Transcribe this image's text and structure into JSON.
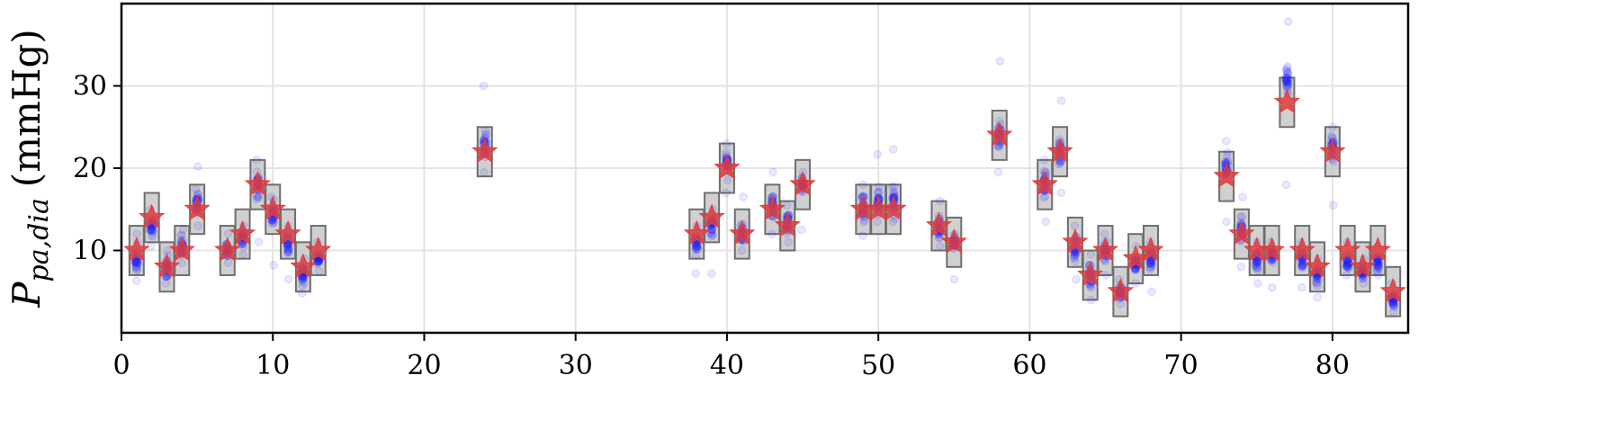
{
  "chart_data": {
    "type": "scatter",
    "title": "",
    "xlabel": "",
    "ylabel": {
      "symbol": "P",
      "subscript": "pa,dia",
      "unit": "(mmHg)"
    },
    "xlim": [
      0,
      85
    ],
    "ylim": [
      0,
      40
    ],
    "xticks": [
      0,
      10,
      20,
      30,
      40,
      50,
      60,
      70,
      80
    ],
    "yticks": [
      10,
      20,
      30
    ],
    "grid": true,
    "colors": {
      "star": "#e03c3c",
      "samples": "#1f1fff",
      "box_fill": "#c8c8c8",
      "box_edge": "#6e6e6e",
      "grid": "#e3e3e3"
    },
    "series": [
      {
        "marker": "star",
        "points": [
          {
            "x": 1,
            "y": 10
          },
          {
            "x": 2,
            "y": 14
          },
          {
            "x": 3,
            "y": 8
          },
          {
            "x": 4,
            "y": 10
          },
          {
            "x": 5,
            "y": 15
          },
          {
            "x": 7,
            "y": 10
          },
          {
            "x": 8,
            "y": 12
          },
          {
            "x": 9,
            "y": 18
          },
          {
            "x": 10,
            "y": 15
          },
          {
            "x": 11,
            "y": 12
          },
          {
            "x": 12,
            "y": 8
          },
          {
            "x": 13,
            "y": 10
          },
          {
            "x": 24,
            "y": 22
          },
          {
            "x": 38,
            "y": 12
          },
          {
            "x": 39,
            "y": 14
          },
          {
            "x": 40,
            "y": 20
          },
          {
            "x": 41,
            "y": 12
          },
          {
            "x": 43,
            "y": 15
          },
          {
            "x": 44,
            "y": 13
          },
          {
            "x": 45,
            "y": 18
          },
          {
            "x": 49,
            "y": 15
          },
          {
            "x": 50,
            "y": 15
          },
          {
            "x": 51,
            "y": 15
          },
          {
            "x": 54,
            "y": 13
          },
          {
            "x": 55,
            "y": 11
          },
          {
            "x": 58,
            "y": 24
          },
          {
            "x": 61,
            "y": 18
          },
          {
            "x": 62,
            "y": 22
          },
          {
            "x": 63,
            "y": 11
          },
          {
            "x": 64,
            "y": 7
          },
          {
            "x": 65,
            "y": 10
          },
          {
            "x": 66,
            "y": 5
          },
          {
            "x": 67,
            "y": 9
          },
          {
            "x": 68,
            "y": 10
          },
          {
            "x": 73,
            "y": 19
          },
          {
            "x": 74,
            "y": 12
          },
          {
            "x": 75,
            "y": 10
          },
          {
            "x": 76,
            "y": 10
          },
          {
            "x": 77,
            "y": 28
          },
          {
            "x": 78,
            "y": 10
          },
          {
            "x": 79,
            "y": 8
          },
          {
            "x": 80,
            "y": 22
          },
          {
            "x": 81,
            "y": 10
          },
          {
            "x": 82,
            "y": 8
          },
          {
            "x": 83,
            "y": 10
          },
          {
            "x": 84,
            "y": 5
          }
        ]
      },
      {
        "marker": "box",
        "half_height": 3,
        "points_from": "star"
      },
      {
        "marker": "circle",
        "samples": [
          {
            "x": 1,
            "median": 9,
            "min": 6.3,
            "max": 12
          },
          {
            "x": 2,
            "median": 13,
            "min": 10.5,
            "max": 15
          },
          {
            "x": 3,
            "median": 8,
            "min": 6,
            "max": 10
          },
          {
            "x": 4,
            "median": 10.5,
            "min": 8.5,
            "max": 12.5
          },
          {
            "x": 5,
            "median": 16,
            "min": 13,
            "max": 20.2
          },
          {
            "x": 7,
            "median": 10,
            "min": 8.5,
            "max": 12
          },
          {
            "x": 8,
            "median": 11.5,
            "min": 9.5,
            "max": 13
          },
          {
            "x": 9,
            "median": 18,
            "min": 11,
            "max": 21
          },
          {
            "x": 10,
            "median": 14.5,
            "min": 8.2,
            "max": 16.5
          },
          {
            "x": 11,
            "median": 11,
            "min": 6.5,
            "max": 13
          },
          {
            "x": 12,
            "median": 7,
            "min": 4.8,
            "max": 9
          },
          {
            "x": 13,
            "median": 9,
            "min": 7.5,
            "max": 11
          },
          {
            "x": 24,
            "median": 23,
            "min": 19.5,
            "max": 30
          },
          {
            "x": 38,
            "median": 11,
            "min": 7.2,
            "max": 13
          },
          {
            "x": 39,
            "median": 13,
            "min": 7.2,
            "max": 15
          },
          {
            "x": 40,
            "median": 20.5,
            "min": 17,
            "max": 23
          },
          {
            "x": 41,
            "median": 12,
            "min": 10,
            "max": 16.5
          },
          {
            "x": 43,
            "median": 15.5,
            "min": 12,
            "max": 19.5
          },
          {
            "x": 44,
            "median": 13.5,
            "min": 11,
            "max": 15.5
          },
          {
            "x": 45,
            "median": 18,
            "min": 12.5,
            "max": 19.5
          },
          {
            "x": 49,
            "median": 15,
            "min": 11.8,
            "max": 18
          },
          {
            "x": 50,
            "median": 16,
            "min": 13.5,
            "max": 21.7
          },
          {
            "x": 51,
            "median": 16,
            "min": 13.5,
            "max": 22.3
          },
          {
            "x": 54,
            "median": 13,
            "min": 10.5,
            "max": 16
          },
          {
            "x": 55,
            "median": 11,
            "min": 6.5,
            "max": 12
          },
          {
            "x": 58,
            "median": 24,
            "min": 19.5,
            "max": 33
          },
          {
            "x": 61,
            "median": 18,
            "min": 13.5,
            "max": 21
          },
          {
            "x": 62,
            "median": 22,
            "min": 17,
            "max": 28.2
          },
          {
            "x": 63,
            "median": 10.5,
            "min": 6.5,
            "max": 13
          },
          {
            "x": 64,
            "median": 7,
            "min": 4,
            "max": 9.5
          },
          {
            "x": 65,
            "median": 10,
            "min": 7,
            "max": 12
          },
          {
            "x": 66,
            "median": 5,
            "min": 3.5,
            "max": 6.5
          },
          {
            "x": 67,
            "median": 8.5,
            "min": 6,
            "max": 10.5
          },
          {
            "x": 68,
            "median": 9,
            "min": 5,
            "max": 11
          },
          {
            "x": 73,
            "median": 20,
            "min": 13.5,
            "max": 23.3
          },
          {
            "x": 74,
            "median": 12.5,
            "min": 8,
            "max": 16.5
          },
          {
            "x": 75,
            "median": 9,
            "min": 6,
            "max": 11
          },
          {
            "x": 76,
            "median": 9.5,
            "min": 5.5,
            "max": 11
          },
          {
            "x": 77,
            "median": 31,
            "min": 18,
            "max": 37.8
          },
          {
            "x": 78,
            "median": 9,
            "min": 5.5,
            "max": 11
          },
          {
            "x": 79,
            "median": 7,
            "min": 4.3,
            "max": 9
          },
          {
            "x": 80,
            "median": 22.5,
            "min": 15.5,
            "max": 25
          },
          {
            "x": 81,
            "median": 8.5,
            "min": 7,
            "max": 11
          },
          {
            "x": 82,
            "median": 7.5,
            "min": 6,
            "max": 9
          },
          {
            "x": 83,
            "median": 8.5,
            "min": 7,
            "max": 10.5
          },
          {
            "x": 84,
            "median": 4,
            "min": 2.5,
            "max": 6
          }
        ]
      }
    ]
  }
}
